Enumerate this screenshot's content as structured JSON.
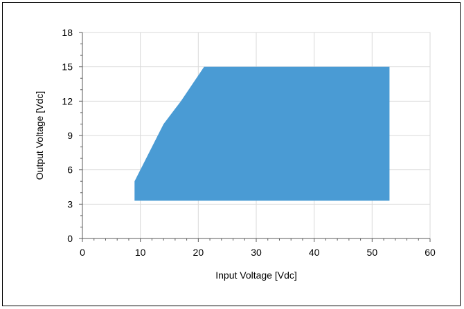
{
  "chart_data": {
    "type": "area",
    "title": "",
    "xlabel": "Input Voltage [Vdc]",
    "ylabel": "Output Voltage [Vdc]",
    "xlim": [
      0,
      60
    ],
    "ylim": [
      0,
      18
    ],
    "xticks": [
      0,
      10,
      20,
      30,
      40,
      50,
      60
    ],
    "yticks": [
      0,
      3,
      6,
      9,
      12,
      15,
      18
    ],
    "grid": true,
    "legend": "none",
    "fill_color": "#4a9bd4",
    "region": {
      "x": [
        9,
        9,
        14,
        17,
        21,
        53,
        53
      ],
      "y": [
        3.3,
        5,
        10,
        12,
        15,
        15,
        3.3
      ]
    }
  }
}
